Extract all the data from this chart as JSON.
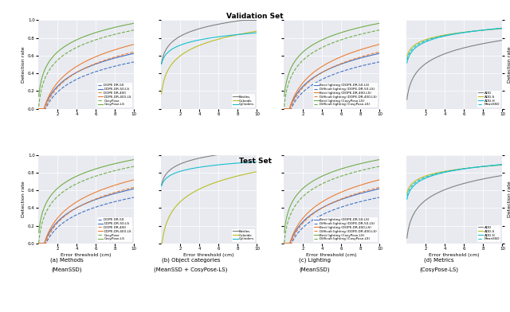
{
  "title_top": "Validation Set",
  "title_bottom": "Test Set",
  "xlabel": "Error threshold (cm)",
  "ylabel": "Detection rate",
  "bg_color": "#e8eaf0",
  "subplot_captions": [
    [
      "(a) Methods",
      "(MeanSSD)"
    ],
    [
      "(b) Object categories",
      "(MeanSSD + CosyPose-LS)"
    ],
    [
      "(c) Lighting",
      "(MeanSSD)"
    ],
    [
      "(d) Metrics",
      "(CosyPose-LS)"
    ]
  ],
  "colors": {
    "blue": "#4472C4",
    "orange": "#ED7D31",
    "green": "#70AD47",
    "gray": "#808080",
    "olive": "#BCBD22",
    "cyan": "#17BECF"
  }
}
